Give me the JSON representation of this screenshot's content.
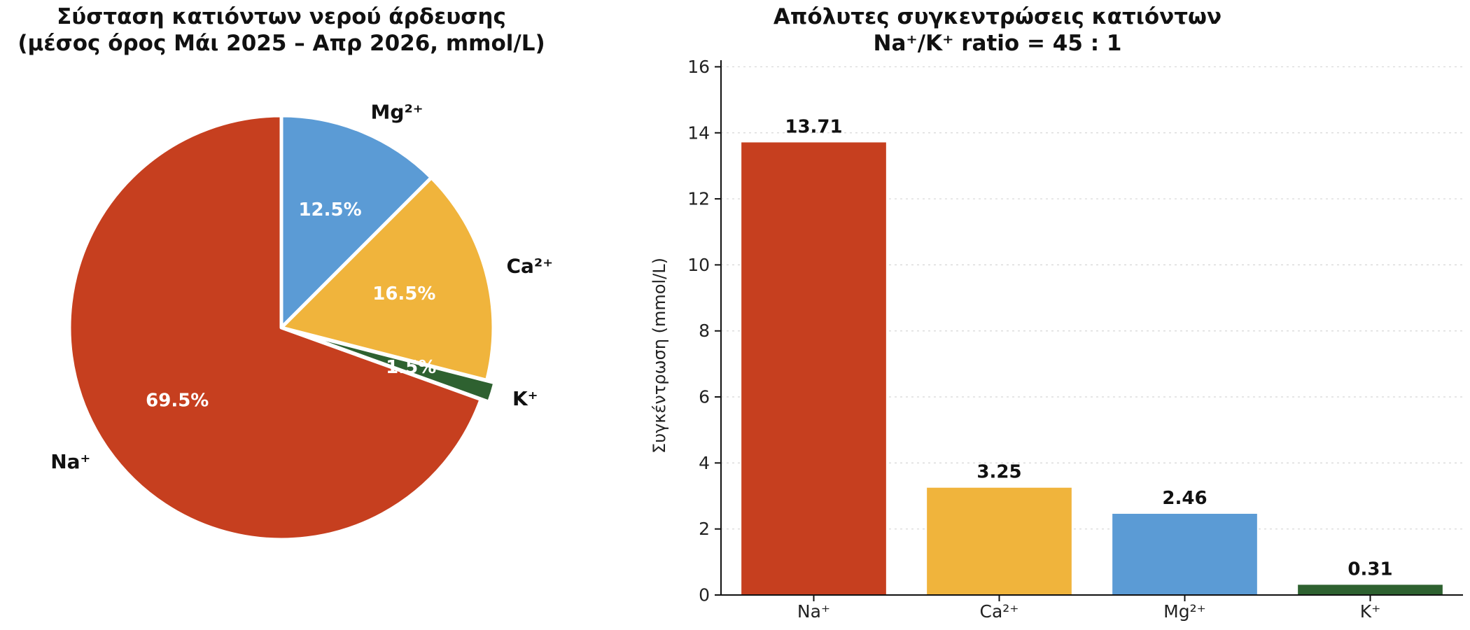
{
  "chart_data": [
    {
      "type": "pie",
      "title_lines": [
        "Σύσταση κατιόντων νερού άρδευσης",
        "(μέσος όρος Μάι 2025 – Απρ 2026, mmol/L)"
      ],
      "start_angle_deg": 90,
      "direction": "clockwise",
      "slices": [
        {
          "label": "Mg²⁺",
          "value": 12.5,
          "pct_label": "12.5%",
          "color": "#5b9bd5",
          "explode": false
        },
        {
          "label": "Ca²⁺",
          "value": 16.5,
          "pct_label": "16.5%",
          "color": "#f0b43c",
          "explode": false
        },
        {
          "label": "K⁺",
          "value": 1.5,
          "pct_label": "1.5%",
          "color": "#2e6130",
          "explode": true
        },
        {
          "label": "Na⁺",
          "value": 69.5,
          "pct_label": "69.5%",
          "color": "#c63f1f",
          "explode": false
        }
      ]
    },
    {
      "type": "bar",
      "title_lines": [
        "Απόλυτες συγκεντρώσεις κατιόντων",
        "Na⁺/K⁺ ratio = 45 : 1"
      ],
      "categories": [
        "Na⁺",
        "Ca²⁺",
        "Mg²⁺",
        "K⁺"
      ],
      "values": [
        13.71,
        3.25,
        2.46,
        0.31
      ],
      "value_labels": [
        "13.71",
        "3.25",
        "2.46",
        "0.31"
      ],
      "colors": [
        "#c63f1f",
        "#f0b43c",
        "#5b9bd5",
        "#2e6130"
      ],
      "xlabel": "",
      "ylabel": "Συγκέντρωση (mmol/L)",
      "ylim": [
        0,
        16.2
      ],
      "yticks": [
        0,
        2,
        4,
        6,
        8,
        10,
        12,
        14,
        16
      ],
      "grid": "horizontal dotted"
    }
  ]
}
